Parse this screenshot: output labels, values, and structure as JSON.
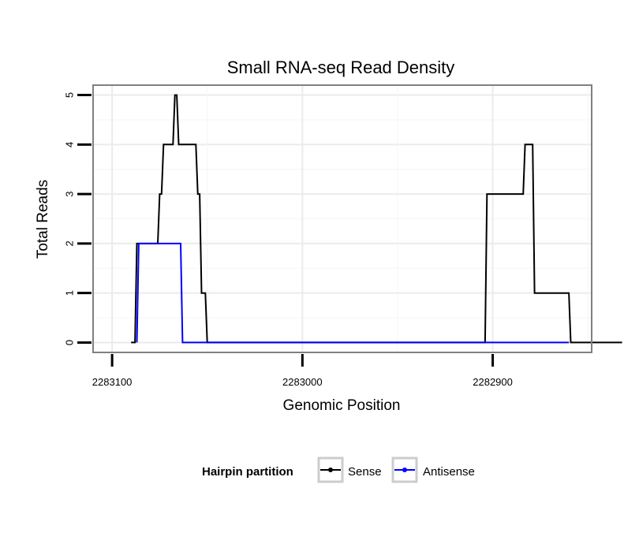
{
  "chart_data": {
    "type": "line",
    "title": "Small RNA-seq Read Density",
    "xlabel": "Genomic Position",
    "ylabel": "Total Reads",
    "xlim": [
      2283110,
      2282848
    ],
    "x_reversed": true,
    "ylim": [
      -0.2,
      5.2
    ],
    "x_ticks": [
      2283100,
      2283000,
      2282900
    ],
    "x_tick_labels": [
      "2283100",
      "2283000",
      "2282900"
    ],
    "y_ticks": [
      0,
      1,
      2,
      3,
      4,
      5
    ],
    "y_tick_labels": [
      "0",
      "1",
      "2",
      "3",
      "4",
      "5"
    ],
    "grid": true,
    "legend": {
      "title": "Hairpin partition",
      "placement": "bottom",
      "entries": [
        {
          "name": "Sense",
          "color": "#000000"
        },
        {
          "name": "Antisense",
          "color": "#0000ff"
        }
      ]
    },
    "series": [
      {
        "name": "Sense",
        "color": "#000000",
        "x": [
          2283090,
          2283088,
          2283087,
          2283076,
          2283075,
          2283074,
          2283073,
          2283068,
          2283067,
          2283066,
          2283065,
          2283056,
          2283055,
          2283054,
          2283053,
          2283052,
          2283051,
          2283050,
          2283049,
          2283048,
          2282904,
          2282903,
          2282884,
          2282883,
          2282881,
          2282879,
          2282878,
          2282860,
          2282859,
          2282832
        ],
        "y": [
          0,
          0,
          2,
          2,
          3,
          3,
          4,
          4,
          5,
          5,
          4,
          4,
          3,
          3,
          1,
          1,
          1,
          0,
          0,
          0,
          0,
          3,
          3,
          4,
          4,
          4,
          1,
          1,
          0,
          0
        ]
      },
      {
        "name": "Antisense",
        "color": "#0000ff",
        "x": [
          2283087,
          2283086,
          2283064,
          2283063,
          2282860
        ],
        "y": [
          0,
          2,
          2,
          0,
          0
        ]
      }
    ]
  }
}
